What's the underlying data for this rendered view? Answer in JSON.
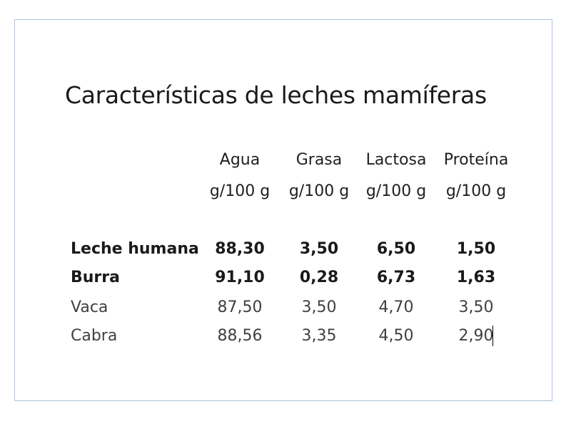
{
  "title": "Características de leches mamíferas",
  "headers": [
    {
      "name": "Agua",
      "unit": "g/100 g"
    },
    {
      "name": "Grasa",
      "unit": "g/100 g"
    },
    {
      "name": "Lactosa",
      "unit": "g/100 g"
    },
    {
      "name": "Proteína",
      "unit": "g/100 g"
    }
  ],
  "rows": [
    {
      "label": "Leche humana",
      "values": [
        "88,30",
        "3,50",
        "6,50",
        "1,50"
      ]
    },
    {
      "label": "Burra",
      "values": [
        "91,10",
        "0,28",
        "6,73",
        "1,63"
      ]
    },
    {
      "label": "Vaca",
      "values": [
        "87,50",
        "3,50",
        "4,70",
        "3,50"
      ]
    },
    {
      "label": "Cabra",
      "values": [
        "88,56",
        "3,35",
        "4,50",
        "2,90"
      ]
    }
  ]
}
